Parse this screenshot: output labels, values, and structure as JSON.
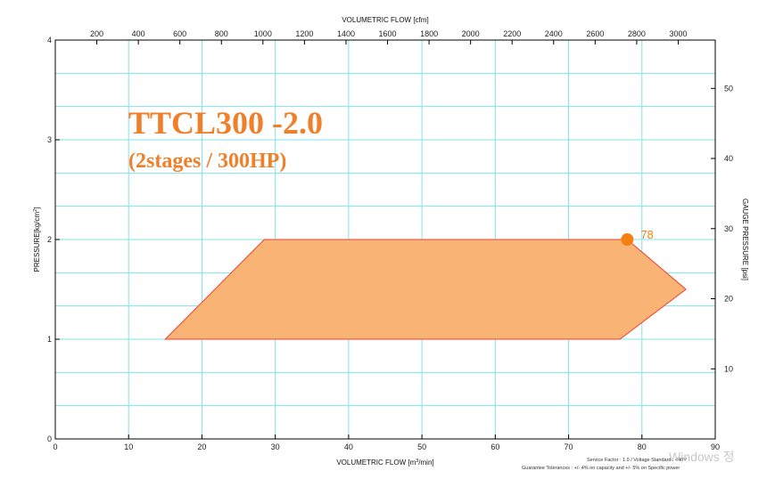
{
  "chart_data": {
    "type": "area",
    "x_bottom": {
      "label_prefix": "VOLUMETRIC FLOW [m",
      "label_sup": "3",
      "label_suffix": "/min]",
      "range": [
        0,
        90
      ],
      "ticks": [
        0,
        10,
        20,
        30,
        40,
        50,
        60,
        70,
        80,
        90
      ]
    },
    "x_top": {
      "label": "VOLUMETRIC FLOW [cfm]",
      "ticks": [
        200,
        400,
        600,
        800,
        1000,
        1200,
        1400,
        1600,
        1800,
        2000,
        2200,
        2400,
        2600,
        2800,
        3000
      ],
      "cfm_per_m3min": 35.3147
    },
    "y_left": {
      "label_prefix": "PRESSURE[kg/cm",
      "label_sup": "2",
      "label_suffix": "]",
      "range": [
        0,
        4
      ],
      "ticks": [
        0,
        1,
        2,
        3,
        4
      ]
    },
    "y_right": {
      "label": "GAUGE PRESSURE [psi]",
      "ticks": [
        10,
        20,
        30,
        40,
        50
      ],
      "psi_per_kgcm2": 14.2233
    },
    "grid": true,
    "region": {
      "name": "",
      "color": "#f9b374",
      "stroke": "#e8432f",
      "points": [
        [
          15,
          1
        ],
        [
          28.5,
          2
        ],
        [
          78,
          2
        ],
        [
          86,
          1.5
        ],
        [
          77,
          1
        ]
      ]
    },
    "marker": {
      "x": 78,
      "y": 2,
      "label": "78",
      "color": "#f5800f"
    },
    "annotations": {
      "model": "TTCL300 -2.0",
      "spec": "(2stages / 300HP)"
    },
    "footnotes": [
      "Service Factor : 1.0 / Voltage Standard : 440V",
      "Guarantee Tolerances : +/- 4% on capacity and +/- 5% on Specific power"
    ],
    "watermark": "Windows 정"
  }
}
